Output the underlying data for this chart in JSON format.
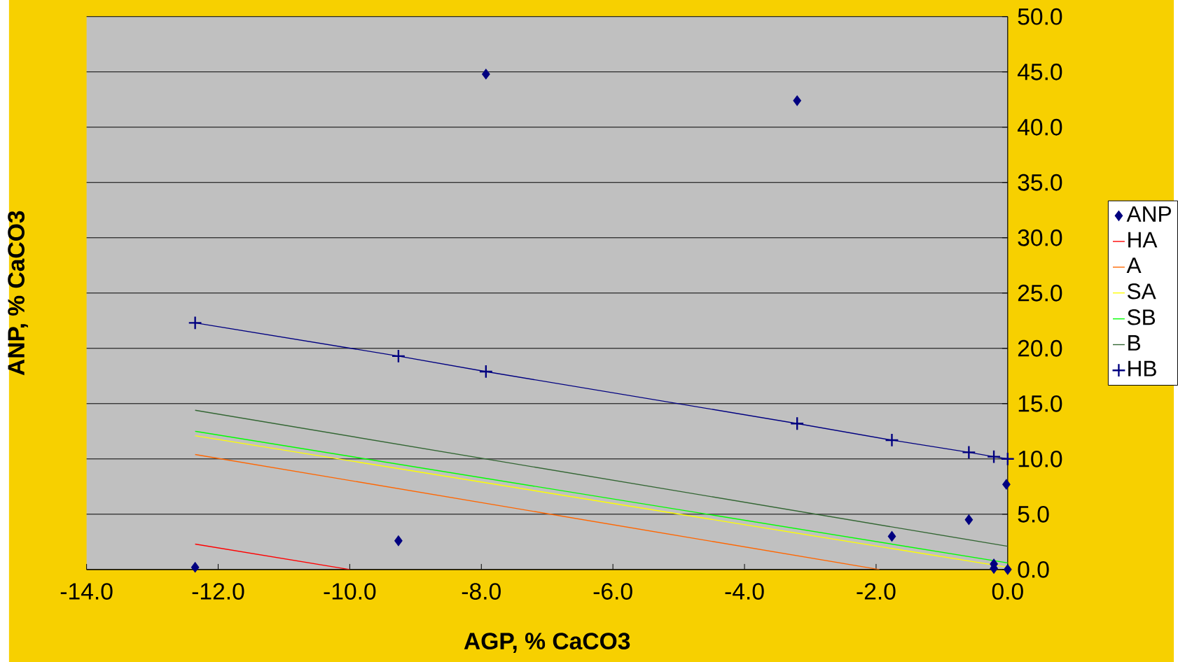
{
  "chart_data": {
    "type": "scatter",
    "xlabel": "AGP, % CaCO3",
    "ylabel": "ANP, % CaCO3",
    "xlim": [
      -14,
      0
    ],
    "ylim": [
      0,
      50
    ],
    "xticks": [
      {
        "value": -14,
        "label": "-14.0"
      },
      {
        "value": -12,
        "label": "-12.0"
      },
      {
        "value": -10,
        "label": "-10.0"
      },
      {
        "value": -8,
        "label": "-8.0"
      },
      {
        "value": -6,
        "label": "-6.0"
      },
      {
        "value": -4,
        "label": "-4.0"
      },
      {
        "value": -2,
        "label": "-2.0"
      },
      {
        "value": 0,
        "label": "0.0"
      }
    ],
    "yticks": [
      {
        "value": 0,
        "label": "0.0"
      },
      {
        "value": 5,
        "label": "5.0"
      },
      {
        "value": 10,
        "label": "10.0"
      },
      {
        "value": 15,
        "label": "15.0"
      },
      {
        "value": 20,
        "label": "20.0"
      },
      {
        "value": 25,
        "label": "25.0"
      },
      {
        "value": 30,
        "label": "30.0"
      },
      {
        "value": 35,
        "label": "35.0"
      },
      {
        "value": 40,
        "label": "40.0"
      },
      {
        "value": 45,
        "label": "45.0"
      },
      {
        "value": 50,
        "label": "50.0"
      }
    ],
    "grid": "y",
    "legend": "right",
    "series": [
      {
        "name": "ANP",
        "marker": "diamond",
        "color": "#000080",
        "x": [
          -12.35,
          -9.26,
          -7.93,
          -3.2,
          -1.76,
          -0.59,
          -0.21,
          -0.21,
          -0.02,
          0
        ],
        "values": [
          0.2,
          2.6,
          44.8,
          42.4,
          3.0,
          4.5,
          0.5,
          0.1,
          7.7,
          0.0
        ]
      },
      {
        "name": "HA",
        "type": "line",
        "marker": "none",
        "color": "#ff0000",
        "x": [
          -12.35,
          -10.0
        ],
        "values": [
          2.3,
          0.0
        ]
      },
      {
        "name": "A",
        "type": "line",
        "marker": "none",
        "color": "#ff6600",
        "x": [
          -12.35,
          -1.95
        ],
        "values": [
          10.4,
          0.0
        ]
      },
      {
        "name": "SA",
        "type": "line",
        "marker": "none",
        "color": "#ffff00",
        "x": [
          -12.35,
          0
        ],
        "values": [
          12.1,
          0.2
        ]
      },
      {
        "name": "SB",
        "type": "line",
        "marker": "none",
        "color": "#00ff00",
        "x": [
          -12.35,
          0
        ],
        "values": [
          12.5,
          0.6
        ]
      },
      {
        "name": "B",
        "type": "line",
        "marker": "none",
        "color": "#336633",
        "x": [
          -12.35,
          0
        ],
        "values": [
          14.4,
          2.1
        ]
      },
      {
        "name": "HB",
        "type": "line",
        "marker": "cross",
        "color": "#000080",
        "x": [
          -12.35,
          -9.26,
          -7.93,
          -3.2,
          -1.76,
          -0.59,
          -0.21,
          0
        ],
        "values": [
          22.3,
          19.3,
          17.9,
          13.2,
          11.7,
          10.6,
          10.2,
          10.0
        ]
      }
    ]
  }
}
